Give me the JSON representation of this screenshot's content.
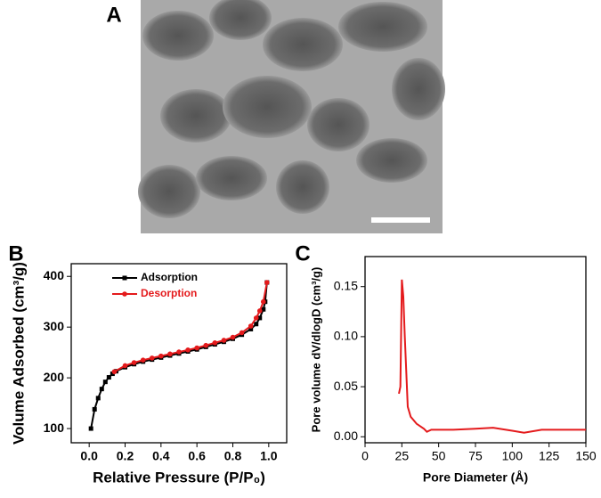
{
  "image_panel": {
    "label": "A"
  },
  "chart_data": [
    {
      "type": "line",
      "panel": "B",
      "x_label": "Relative Pressure (P/P₀)",
      "y_label": "Volume Adsorbed (cm³/g)",
      "xlim": [
        -0.1,
        1.1
      ],
      "ylim": [
        72,
        425
      ],
      "xticks": [
        {
          "value": 0,
          "label": "0.0"
        },
        0.2,
        0.4,
        0.6,
        0.8,
        {
          "value": 1,
          "label": "1.0"
        }
      ],
      "yticks": [
        100,
        200,
        300,
        400
      ],
      "legend": "upper left",
      "series": [
        {
          "name": "Adsorption",
          "color": "#000000",
          "marker": "square",
          "x": [
            0.01,
            0.03,
            0.05,
            0.07,
            0.09,
            0.11,
            0.13,
            0.15,
            0.2,
            0.25,
            0.3,
            0.35,
            0.4,
            0.45,
            0.5,
            0.55,
            0.6,
            0.65,
            0.7,
            0.75,
            0.8,
            0.85,
            0.9,
            0.93,
            0.95,
            0.97,
            0.98,
            0.99
          ],
          "values": [
            100,
            138,
            160,
            178,
            192,
            201,
            208,
            213,
            221,
            227,
            232,
            236,
            240,
            244,
            248,
            252,
            256,
            261,
            266,
            271,
            277,
            285,
            296,
            306,
            318,
            335,
            350,
            388
          ]
        },
        {
          "name": "Desorption",
          "color": "#e41a1c",
          "marker": "circle",
          "x": [
            0.14,
            0.2,
            0.25,
            0.3,
            0.35,
            0.4,
            0.45,
            0.5,
            0.55,
            0.6,
            0.65,
            0.7,
            0.75,
            0.8,
            0.85,
            0.9,
            0.93,
            0.95,
            0.97,
            0.99
          ],
          "values": [
            212,
            224,
            230,
            235,
            239,
            243,
            247,
            251,
            255,
            259,
            264,
            269,
            274,
            280,
            289,
            302,
            318,
            332,
            350,
            388
          ]
        }
      ]
    },
    {
      "type": "line",
      "panel": "C",
      "x_label": "Pore Diameter (Å)",
      "y_label": "Pore volume dV/dlogD (cm³/g)",
      "xlim": [
        0,
        150
      ],
      "ylim": [
        -0.006,
        0.18
      ],
      "xticks": [
        0,
        25,
        50,
        75,
        100,
        125,
        150
      ],
      "yticks": [
        {
          "value": 0,
          "label": "0.00"
        },
        {
          "value": 0.05,
          "label": "0.05"
        },
        {
          "value": 0.1,
          "label": "0.10"
        },
        {
          "value": 0.15,
          "label": "0.15"
        }
      ],
      "series": [
        {
          "color": "#e41a1c",
          "x": [
            23,
            24,
            25,
            26,
            27,
            29,
            31,
            35,
            40,
            42,
            45,
            60,
            75,
            87,
            100,
            108,
            120,
            150
          ],
          "values": [
            0.043,
            0.05,
            0.157,
            0.14,
            0.1,
            0.03,
            0.02,
            0.013,
            0.008,
            0.005,
            0.007,
            0.007,
            0.008,
            0.009,
            0.006,
            0.004,
            0.007,
            0.007
          ]
        }
      ]
    }
  ]
}
